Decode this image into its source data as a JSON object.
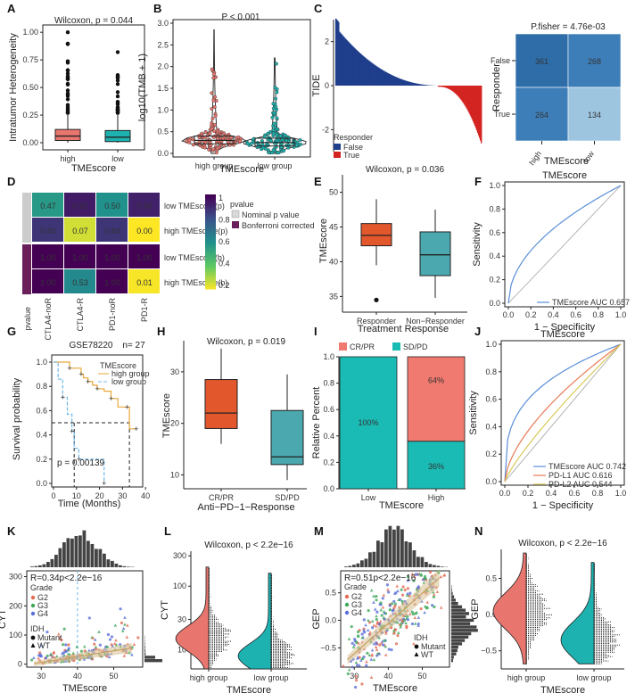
{
  "figure": {
    "panel_letters": [
      "A",
      "B",
      "C",
      "D",
      "E",
      "F",
      "G",
      "H",
      "I",
      "J",
      "K",
      "L",
      "M",
      "N"
    ]
  },
  "colors": {
    "red": "#E8766F",
    "teal": "#1DB2B0",
    "orange": "#E2582C",
    "blue_dark": "#1F3E8C",
    "red_dark": "#D32422",
    "heat_dark": "#2F6DA9",
    "heat_mid": "#3E7EB8",
    "heat_light": "#9EC5E0",
    "viridis": [
      "#FDE725",
      "#5DC863",
      "#21918C",
      "#3B528B",
      "#440154"
    ],
    "teal_box": "#4AA8AE",
    "cr_red": "#F07A6F",
    "sd_teal": "#1ABBB4"
  },
  "chart_data": [
    {
      "panel": "A",
      "type": "box",
      "title": "Wilcoxon, p = 0.044",
      "ylabel": "Intratumor Heterogeneity",
      "xlabel": "TMEscore",
      "categories": [
        "high",
        "low"
      ],
      "yticks": [
        "0.00",
        "0.25",
        "0.50",
        "0.75",
        "1.00"
      ],
      "ylim": [
        0,
        1.05
      ],
      "boxes": [
        {
          "name": "high",
          "q1": 0.02,
          "median": 0.06,
          "q3": 0.12,
          "min": 0.0,
          "max": 0.27
        },
        {
          "name": "low",
          "q1": 0.01,
          "median": 0.05,
          "q3": 0.11,
          "min": 0.0,
          "max": 0.25
        }
      ]
    },
    {
      "panel": "B",
      "type": "violin",
      "title": "P < 0.001",
      "ylabel": "log10(TMB + 1)",
      "xlabel": "TMEscore",
      "categories": [
        "high group",
        "low group"
      ],
      "yticks": [
        "0.0",
        "0.5",
        "1.0",
        "1.5",
        "2.0",
        "2.5",
        "3.0"
      ],
      "ylim": [
        0,
        3.0
      ],
      "medians": [
        0.3,
        0.25
      ]
    },
    {
      "panel": "C",
      "type": "bar",
      "ylabel": "TIDE",
      "yticks": [
        "-2",
        "0",
        "2"
      ],
      "ylim": [
        -3,
        3
      ],
      "legend_title": "Responder",
      "legend": [
        "False",
        "True"
      ]
    },
    {
      "panel": "C2",
      "type": "heatmap",
      "title": "P.fisher = 4.76e-03",
      "ylabel": "Responder",
      "xlabel": "TMEscore",
      "rows": [
        "False",
        "True"
      ],
      "cols": [
        "high",
        "low"
      ],
      "values": [
        [
          361,
          268
        ],
        [
          264,
          134
        ]
      ]
    },
    {
      "panel": "D",
      "type": "heatmap",
      "rows": [
        "low TMEscore(p)",
        "high TMEscore(p)",
        "low TMEscore(b)",
        "high TMEscore(b)"
      ],
      "cols": [
        "CTLA4-noR",
        "CTLA4-R",
        "PD1-noR",
        "PD1-R"
      ],
      "values": [
        [
          0.47,
          0.92,
          0.5,
          0.9
        ],
        [
          0.84,
          0.07,
          0.84,
          0.0
        ],
        [
          1.0,
          1.0,
          1.0,
          1.0
        ],
        [
          1.0,
          0.53,
          1.0,
          0.01
        ]
      ],
      "colorbar_ticks": [
        "1",
        "0.8",
        "0.6",
        "0.4",
        "0.2"
      ],
      "legend_title": "pvalue",
      "legend": [
        "Nominal p value",
        "Bonferroni corrected"
      ],
      "side_label": "pvalue"
    },
    {
      "panel": "E",
      "type": "box",
      "title": "Wilcoxon, p = 0.036",
      "ylabel": "TMEscore",
      "xlabel": "Treatment Response",
      "categories": [
        "Responder",
        "Non−Responder"
      ],
      "yticks": [
        "35",
        "40",
        "45",
        "50"
      ],
      "ylim": [
        33,
        52
      ],
      "boxes": [
        {
          "name": "Responder",
          "q1": 42.3,
          "median": 43.8,
          "q3": 45.5,
          "min": 39.5,
          "max": 49.0,
          "outliers": [
            34.5
          ]
        },
        {
          "name": "Non-Responder",
          "q1": 38.0,
          "median": 41.0,
          "q3": 44.3,
          "min": 34.8,
          "max": 47.5
        }
      ]
    },
    {
      "panel": "F",
      "type": "line",
      "title": "TMEscore",
      "ylabel": "Sensitivity",
      "xlabel": "1 − Specificity",
      "ticks": [
        "0.0",
        "0.2",
        "0.4",
        "0.6",
        "0.8",
        "1.0"
      ],
      "series": [
        {
          "name": "TMEscore AUC 0.657",
          "power": 0.5
        }
      ]
    },
    {
      "panel": "G",
      "type": "line",
      "title": "GSE78220",
      "subtitle": "n= 27",
      "ylabel": "Survival probability",
      "xlabel": "Time (Months)",
      "xticks": [
        "0",
        "10",
        "20",
        "30",
        "40"
      ],
      "yticks": [
        "0.0",
        "0.2",
        "0.4",
        "0.6",
        "0.8",
        "1.0"
      ],
      "legend_title": "TMEscore",
      "legend": [
        "high group",
        "low group"
      ],
      "pvalue": "p = 0.00139",
      "series": [
        {
          "name": "high group",
          "x": [
            0,
            4,
            7,
            10,
            12,
            13,
            15,
            17,
            19,
            22,
            25,
            28,
            32,
            33,
            36
          ],
          "y": [
            1.0,
            1.0,
            0.95,
            0.95,
            0.9,
            0.87,
            0.84,
            0.81,
            0.78,
            0.76,
            0.7,
            0.63,
            0.63,
            0.45,
            0.45
          ]
        },
        {
          "name": "low group",
          "x": [
            0,
            2,
            4,
            6,
            8,
            9,
            11,
            13,
            22
          ],
          "y": [
            1.0,
            0.86,
            0.71,
            0.57,
            0.43,
            0.29,
            0.2,
            0.2,
            0.0
          ]
        }
      ]
    },
    {
      "panel": "H",
      "type": "box",
      "title": "Wilcoxon, p = 0.019",
      "ylabel": "TMEscore",
      "xlabel": "Anti−PD−1−Response",
      "categories": [
        "CR/PR",
        "SD/PD"
      ],
      "yticks": [
        "10",
        "20",
        "30"
      ],
      "ylim": [
        8,
        35
      ],
      "boxes": [
        {
          "name": "CR/PR",
          "q1": 19.0,
          "median": 22.0,
          "q3": 28.5,
          "min": 16.0,
          "max": 34.5
        },
        {
          "name": "SD/PD",
          "q1": 12.0,
          "median": 13.5,
          "q3": 22.5,
          "min": 9.0,
          "max": 29.5
        }
      ]
    },
    {
      "panel": "I",
      "type": "bar",
      "stacked": true,
      "ylabel": "Relative Percent",
      "xlabel": "TMEscore",
      "categories": [
        "Low",
        "High"
      ],
      "yticks": [
        "0.0",
        "0.2",
        "0.4",
        "0.6",
        "0.8",
        "1.0"
      ],
      "legend": [
        "CR/PR",
        "SD/PD"
      ],
      "series": [
        {
          "name": "SD/PD",
          "values": [
            1.0,
            0.36
          ]
        },
        {
          "name": "CR/PR",
          "values": [
            0.0,
            0.64
          ]
        }
      ],
      "labels": [
        "100%",
        "64%",
        "36%"
      ]
    },
    {
      "panel": "J",
      "type": "line",
      "title": "TMEscore",
      "ylabel": "Sensitivity",
      "xlabel": "1 − Specificity",
      "ticks": [
        "0.0",
        "0.2",
        "0.4",
        "0.6",
        "0.8",
        "1.0"
      ],
      "series": [
        {
          "name": "TMEscore AUC 0.742",
          "power": 0.32
        },
        {
          "name": "PD-L1 AUC 0.616",
          "power": 0.62
        },
        {
          "name": "PD-L2 AUC 0.544",
          "power": 0.83
        }
      ]
    },
    {
      "panel": "K",
      "type": "scatter",
      "ylabel": "CYT",
      "xlabel": "TMEscore",
      "corr": "R=0.34p<2.2e−16",
      "xticks": [
        "30",
        "40",
        "50"
      ],
      "yticks": [
        "0",
        "100",
        "200",
        "300"
      ],
      "legend_grade_title": "Grade",
      "legend_grade": [
        "G2",
        "G3",
        "G4"
      ],
      "legend_idh_title": "IDH",
      "legend_idh": [
        "Mutant",
        "WT"
      ]
    },
    {
      "panel": "L",
      "type": "violin",
      "title": "Wilcoxon, p < 2.2e−16",
      "ylabel": "CYT",
      "xlabel": "TMEscore",
      "categories": [
        "high group",
        "low group"
      ],
      "yticks": [
        "10",
        "30",
        "100",
        "300"
      ]
    },
    {
      "panel": "M",
      "type": "scatter",
      "ylabel": "GEP",
      "xlabel": "TMEscore",
      "corr": "R=0.51p<2.2e−16",
      "xticks": [
        "30",
        "40",
        "50"
      ],
      "yticks": [
        "−0.5",
        "0.0",
        "0.5"
      ],
      "legend_grade_title": "Grade",
      "legend_grade": [
        "G2",
        "G3",
        "G4"
      ],
      "legend_idh_title": "IDH",
      "legend_idh": [
        "Mutant",
        "WT"
      ]
    },
    {
      "panel": "N",
      "type": "violin",
      "title": "Wilcoxon, p < 2.2e−16",
      "ylabel": "GEP",
      "xlabel": "TMEscore",
      "categories": [
        "high group",
        "low group"
      ],
      "yticks": [
        "−0.5",
        "0.0",
        "0.5"
      ]
    }
  ]
}
